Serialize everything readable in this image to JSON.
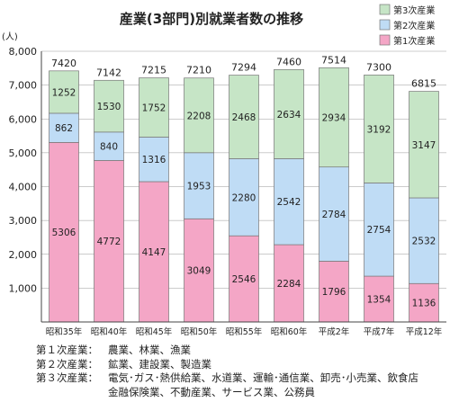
{
  "chart_data": {
    "type": "stacked-bar",
    "title": "産業(3部門)別就業者数の推移",
    "ylabel": "(人)",
    "ylim": [
      0,
      8000
    ],
    "yticks": [
      "8,000",
      "7,000",
      "6,000",
      "5,000",
      "4,000",
      "3,000",
      "2,000",
      "1,000"
    ],
    "grid": true,
    "legend_position": "top-right",
    "categories": [
      "昭和35年",
      "昭和40年",
      "昭和45年",
      "昭和50年",
      "昭和55年",
      "昭和60年",
      "平成2年",
      "平成7年",
      "平成12年"
    ],
    "totals": [
      7420,
      7142,
      7215,
      7210,
      7294,
      7460,
      7514,
      7300,
      6815
    ],
    "series": [
      {
        "name": "第1次産業",
        "color": "#f4a6c6",
        "values": [
          5306,
          4772,
          4147,
          3049,
          2546,
          2284,
          1796,
          1354,
          1136
        ]
      },
      {
        "name": "第2次産業",
        "color": "#bfdcf5",
        "values": [
          862,
          840,
          1316,
          1953,
          2280,
          2542,
          2784,
          2754,
          2532
        ]
      },
      {
        "name": "第3次産業",
        "color": "#c6e5c6",
        "values": [
          1252,
          1530,
          1752,
          2208,
          2468,
          2634,
          2934,
          3192,
          3147
        ]
      }
    ],
    "legend_order": [
      "第3次産業",
      "第2次産業",
      "第1次産業"
    ]
  },
  "notes": [
    {
      "label": "第１次産業：",
      "text": "農業、林業、漁業"
    },
    {
      "label": "第２次産業：",
      "text": "鉱業、建設業、製造業"
    },
    {
      "label": "第３次産業：",
      "text": "電気･ガス･熱供給業、水道業、運輸･通信業、卸売･小売業、飲食店"
    }
  ],
  "notes_continuation": "金融保険業、不動産業、サービス業、公務員"
}
